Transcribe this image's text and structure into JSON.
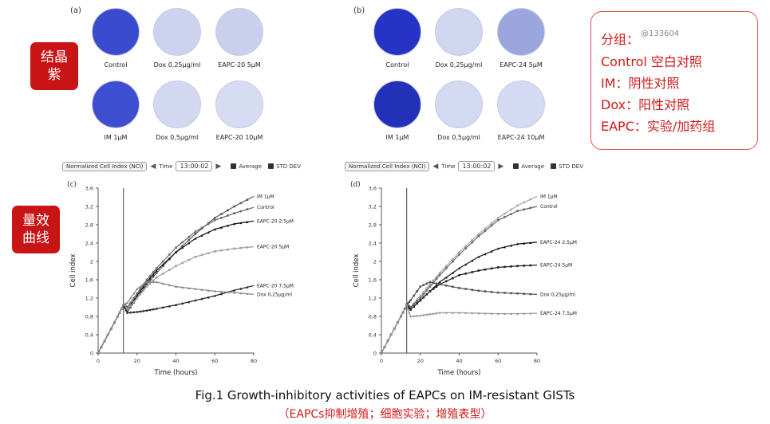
{
  "panels": {
    "a": {
      "label": "(a)",
      "dishes": [
        {
          "name": "Control",
          "color": "#3a4bcf"
        },
        {
          "name": "Dox 0,25µg/ml",
          "color": "#cdd3ee"
        },
        {
          "name": "EAPC-20 5µM",
          "color": "#c8d0ec"
        },
        {
          "name": "IM 1µM",
          "color": "#3d4ed0"
        },
        {
          "name": "Dox 0,5µg/ml",
          "color": "#d2d8f0"
        },
        {
          "name": "EAPC-20 10µM",
          "color": "#d6dcf1"
        }
      ]
    },
    "b": {
      "label": "(b)",
      "dishes": [
        {
          "name": "Control",
          "color": "#2633c4"
        },
        {
          "name": "Dox 0,25µg/ml",
          "color": "#d0d6ef"
        },
        {
          "name": "EAPC-24 5µM",
          "color": "#9aa6dd"
        },
        {
          "name": "IM 1µM",
          "color": "#2330b8"
        },
        {
          "name": "Dox 0,5µg/ml",
          "color": "#d3d9f1"
        },
        {
          "name": "EAPC-24 10µM",
          "color": "#d4daf1"
        }
      ]
    }
  },
  "tags": {
    "crystal": "结晶\n紫",
    "curve": "量效\n曲线"
  },
  "legend_box": {
    "title": "分组：",
    "watermark": "@133604",
    "lines": [
      "Control 空白对照",
      "IM：阴性对照",
      "Dox：阳性对照",
      "EAPC：实验/加药组"
    ]
  },
  "controls": {
    "nci": "Normalized Cell Index (NCI)",
    "time_label": "Time",
    "time_value": "13:00:02",
    "average": "Average",
    "std": "STD DEV"
  },
  "caption": "Fig.1 Growth-inhibitory activities of EAPCs on IM-resistant GISTs",
  "subcaption": "（EAPCs抑制增殖；细胞实验；增殖表型）",
  "chart_data": [
    {
      "panel": "(c)",
      "type": "line",
      "xlabel": "Time (hours)",
      "ylabel": "Cell index",
      "xlim": [
        0,
        80
      ],
      "ylim": [
        0,
        3.6
      ],
      "xticks": [
        0,
        20,
        40,
        60,
        80
      ],
      "yticks": [
        0,
        0.4,
        0.8,
        1.2,
        1.6,
        2.0,
        2.4,
        2.8,
        3.2,
        3.6
      ],
      "ytick_labels": [
        "0",
        "0,4",
        "0,8",
        "1,2",
        "1,6",
        "2",
        "2,4",
        "2,8",
        "3,2",
        "3,6"
      ],
      "vline_x": 13,
      "series": [
        {
          "name": "IM 1µM",
          "color": "#555555",
          "x": [
            0,
            5,
            10,
            13,
            15,
            20,
            25,
            30,
            40,
            50,
            60,
            70,
            80
          ],
          "y": [
            0,
            0.4,
            0.8,
            1.05,
            0.9,
            1.2,
            1.5,
            1.75,
            2.2,
            2.6,
            2.95,
            3.2,
            3.42
          ]
        },
        {
          "name": "Control",
          "color": "#6a6a6a",
          "x": [
            0,
            5,
            10,
            13,
            15,
            20,
            25,
            30,
            40,
            50,
            60,
            70,
            80
          ],
          "y": [
            0,
            0.4,
            0.8,
            1.05,
            1.0,
            1.3,
            1.6,
            1.85,
            2.3,
            2.65,
            2.9,
            3.05,
            3.18
          ]
        },
        {
          "name": "EAPC-20  2,5µM",
          "color": "#111111",
          "x": [
            0,
            5,
            10,
            13,
            15,
            20,
            25,
            30,
            40,
            50,
            60,
            70,
            80
          ],
          "y": [
            0,
            0.4,
            0.8,
            1.05,
            0.95,
            1.25,
            1.55,
            1.8,
            2.2,
            2.5,
            2.7,
            2.82,
            2.88
          ]
        },
        {
          "name": "EAPC-20   5µM",
          "color": "#a0a0a0",
          "x": [
            0,
            5,
            10,
            13,
            15,
            20,
            25,
            30,
            40,
            50,
            60,
            70,
            80
          ],
          "y": [
            0,
            0.4,
            0.8,
            1.05,
            0.95,
            1.2,
            1.45,
            1.65,
            1.9,
            2.1,
            2.22,
            2.28,
            2.32
          ]
        },
        {
          "name": "EAPC-20  7,5µM",
          "color": "#222222",
          "x": [
            0,
            5,
            10,
            13,
            15,
            20,
            25,
            30,
            40,
            50,
            60,
            70,
            80
          ],
          "y": [
            0,
            0.4,
            0.8,
            1.05,
            0.88,
            0.9,
            0.93,
            0.97,
            1.05,
            1.15,
            1.25,
            1.37,
            1.47
          ]
        },
        {
          "name": "Dox  0,25µg/ml",
          "color": "#888888",
          "x": [
            0,
            5,
            10,
            13,
            15,
            20,
            25,
            30,
            40,
            50,
            60,
            70,
            80
          ],
          "y": [
            0,
            0.4,
            0.8,
            1.05,
            1.1,
            1.4,
            1.55,
            1.55,
            1.45,
            1.4,
            1.35,
            1.32,
            1.28
          ]
        }
      ]
    },
    {
      "panel": "(d)",
      "type": "line",
      "xlabel": "Time (hours)",
      "ylabel": "Cell index",
      "xlim": [
        0,
        80
      ],
      "ylim": [
        0,
        3.6
      ],
      "xticks": [
        0,
        20,
        40,
        60,
        80
      ],
      "yticks": [
        0,
        0.4,
        0.8,
        1.2,
        1.6,
        2.0,
        2.4,
        2.8,
        3.2,
        3.6
      ],
      "ytick_labels": [
        "0",
        "0,4",
        "0,8",
        "1,2",
        "1,6",
        "2",
        "2,4",
        "2,8",
        "3,2",
        "3,6"
      ],
      "vline_x": 13,
      "series": [
        {
          "name": "IM 1µM",
          "color": "#a8a8a8",
          "x": [
            0,
            5,
            10,
            13,
            15,
            20,
            25,
            30,
            40,
            50,
            60,
            70,
            80
          ],
          "y": [
            0,
            0.4,
            0.8,
            1.05,
            1.0,
            1.25,
            1.5,
            1.75,
            2.2,
            2.6,
            2.95,
            3.22,
            3.42
          ]
        },
        {
          "name": "Control",
          "color": "#666666",
          "x": [
            0,
            5,
            10,
            13,
            15,
            20,
            25,
            30,
            40,
            50,
            60,
            70,
            80
          ],
          "y": [
            0,
            0.4,
            0.8,
            1.05,
            1.0,
            1.2,
            1.45,
            1.7,
            2.15,
            2.55,
            2.9,
            3.1,
            3.2
          ]
        },
        {
          "name": "EAPC-24  2,5µM",
          "color": "#111111",
          "x": [
            0,
            5,
            10,
            13,
            15,
            20,
            25,
            30,
            40,
            50,
            60,
            70,
            80
          ],
          "y": [
            0,
            0.4,
            0.8,
            1.05,
            0.95,
            1.15,
            1.35,
            1.55,
            1.85,
            2.1,
            2.28,
            2.38,
            2.42
          ]
        },
        {
          "name": "EAPC-24  5µM",
          "color": "#222222",
          "x": [
            0,
            5,
            10,
            13,
            15,
            20,
            25,
            30,
            40,
            50,
            60,
            70,
            80
          ],
          "y": [
            0,
            0.4,
            0.8,
            1.05,
            0.95,
            1.15,
            1.35,
            1.5,
            1.7,
            1.8,
            1.87,
            1.9,
            1.92
          ]
        },
        {
          "name": "Dox  0,25µg/ml",
          "color": "#555555",
          "x": [
            0,
            5,
            10,
            13,
            15,
            20,
            25,
            30,
            40,
            50,
            60,
            70,
            80
          ],
          "y": [
            0,
            0.4,
            0.8,
            1.05,
            1.15,
            1.45,
            1.55,
            1.5,
            1.42,
            1.36,
            1.32,
            1.3,
            1.28
          ]
        },
        {
          "name": "EAPC-24  7,5µM",
          "color": "#9a9a9a",
          "x": [
            0,
            5,
            10,
            13,
            15,
            20,
            25,
            30,
            40,
            50,
            60,
            70,
            80
          ],
          "y": [
            0,
            0.4,
            0.8,
            1.05,
            0.8,
            0.82,
            0.85,
            0.88,
            0.88,
            0.87,
            0.86,
            0.86,
            0.87
          ]
        }
      ]
    }
  ]
}
